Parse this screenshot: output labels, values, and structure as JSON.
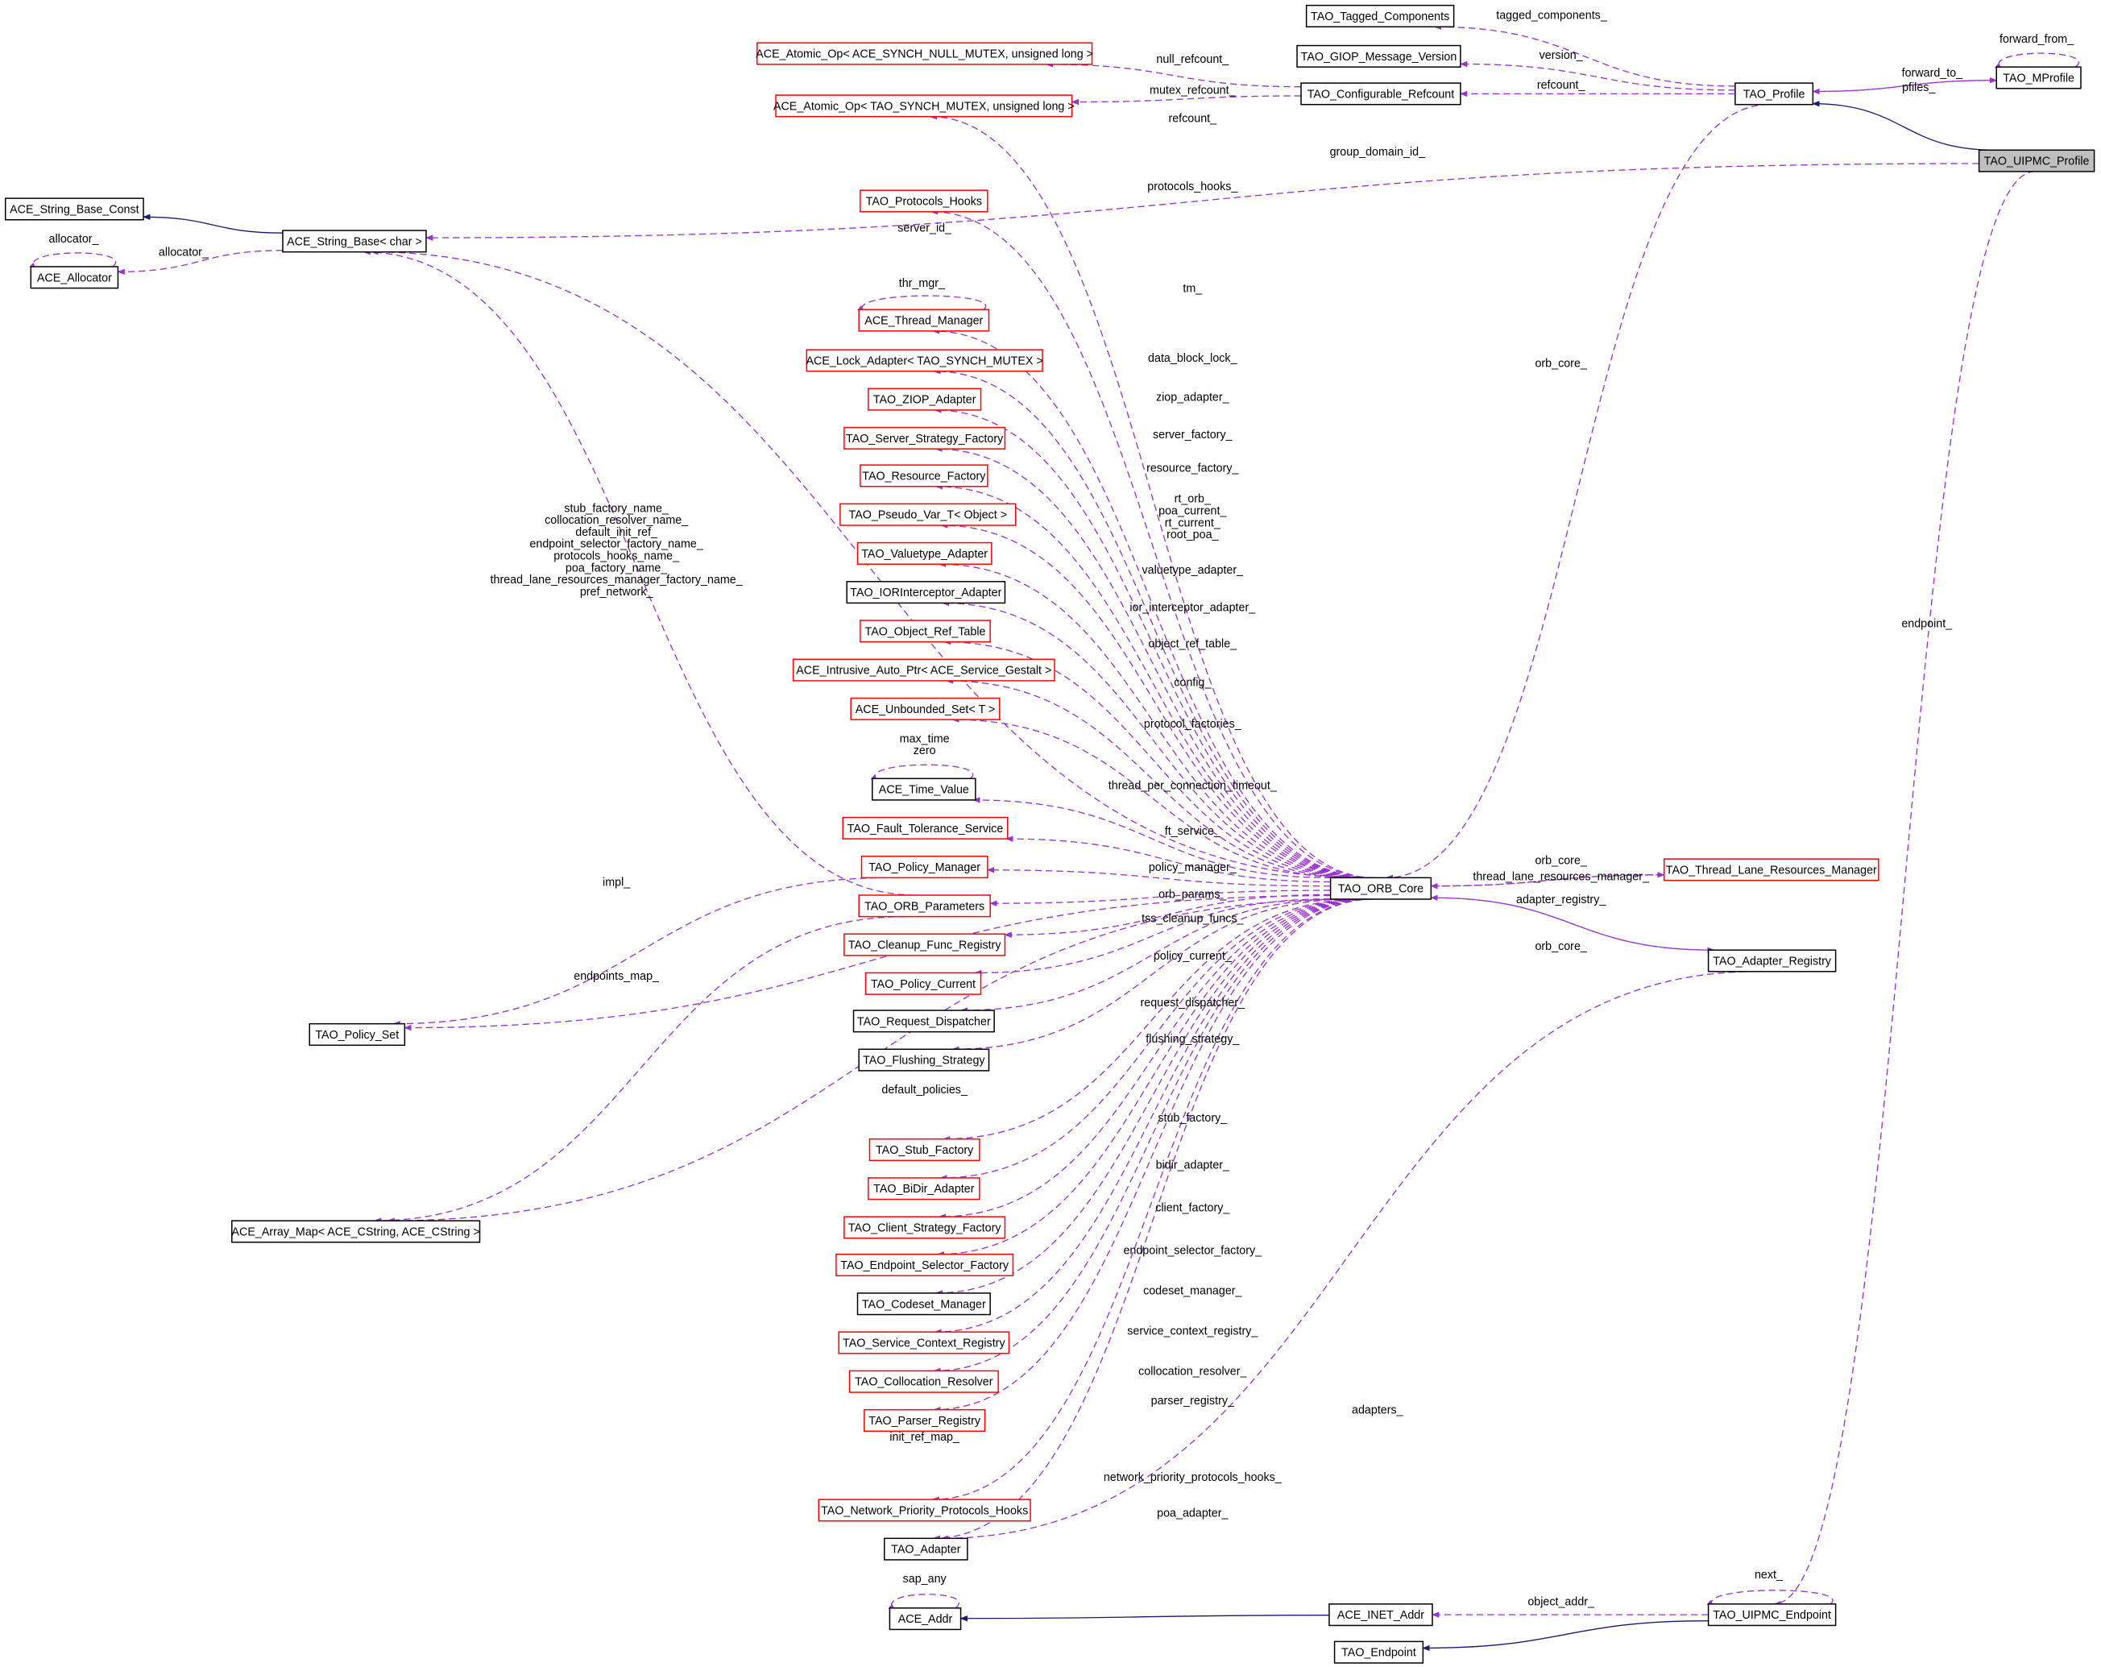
{
  "colors": {
    "reference_edge": "#9a32cd",
    "inheritance_edge": "#191970",
    "incomplete_node_border": "#ff0000",
    "node_border": "#000000",
    "focus_node_fill": "#bfbfbf"
  },
  "nodes": [
    {
      "id": "tagged",
      "label": "TAO_Tagged_Components",
      "style": "black"
    },
    {
      "id": "giop",
      "label": "TAO_GIOP_Message_Version",
      "style": "black"
    },
    {
      "id": "atomic_null",
      "label": "ACE_Atomic_Op< ACE_SYNCH_NULL_MUTEX, unsigned long >",
      "style": "red"
    },
    {
      "id": "atomic_tao",
      "label": "ACE_Atomic_Op< TAO_SYNCH_MUTEX, unsigned long >",
      "style": "red"
    },
    {
      "id": "refcount",
      "label": "TAO_Configurable_Refcount",
      "style": "black"
    },
    {
      "id": "profile",
      "label": "TAO_Profile",
      "style": "black"
    },
    {
      "id": "mprofile",
      "label": "TAO_MProfile",
      "style": "black"
    },
    {
      "id": "uipmc_profile",
      "label": "TAO_UIPMC_Profile",
      "style": "highlight"
    },
    {
      "id": "sbase_const",
      "label": "ACE_String_Base_Const",
      "style": "black"
    },
    {
      "id": "sbase",
      "label": "ACE_String_Base< char >",
      "style": "black"
    },
    {
      "id": "allocator",
      "label": "ACE_Allocator",
      "style": "black"
    },
    {
      "id": "proto_hooks",
      "label": "TAO_Protocols_Hooks",
      "style": "red"
    },
    {
      "id": "thread_mgr",
      "label": "ACE_Thread_Manager",
      "style": "red"
    },
    {
      "id": "lock_adapter",
      "label": "ACE_Lock_Adapter< TAO_SYNCH_MUTEX >",
      "style": "red"
    },
    {
      "id": "ziop",
      "label": "TAO_ZIOP_Adapter",
      "style": "red"
    },
    {
      "id": "server_sf",
      "label": "TAO_Server_Strategy_Factory",
      "style": "red"
    },
    {
      "id": "resource_f",
      "label": "TAO_Resource_Factory",
      "style": "red"
    },
    {
      "id": "pseudo_var",
      "label": "TAO_Pseudo_Var_T< Object >",
      "style": "red"
    },
    {
      "id": "valuetype",
      "label": "TAO_Valuetype_Adapter",
      "style": "red"
    },
    {
      "id": "ior_int",
      "label": "TAO_IORInterceptor_Adapter",
      "style": "black"
    },
    {
      "id": "obj_ref",
      "label": "TAO_Object_Ref_Table",
      "style": "red"
    },
    {
      "id": "intrusive",
      "label": "ACE_Intrusive_Auto_Ptr< ACE_Service_Gestalt >",
      "style": "red"
    },
    {
      "id": "unbounded",
      "label": "ACE_Unbounded_Set< T >",
      "style": "red"
    },
    {
      "id": "time_value",
      "label": "ACE_Time_Value",
      "style": "black"
    },
    {
      "id": "ft",
      "label": "TAO_Fault_Tolerance_Service",
      "style": "red"
    },
    {
      "id": "policy_mgr",
      "label": "TAO_Policy_Manager",
      "style": "red"
    },
    {
      "id": "orb_params",
      "label": "TAO_ORB_Parameters",
      "style": "red"
    },
    {
      "id": "cleanup",
      "label": "TAO_Cleanup_Func_Registry",
      "style": "red"
    },
    {
      "id": "policy_cur",
      "label": "TAO_Policy_Current",
      "style": "red"
    },
    {
      "id": "req_disp",
      "label": "TAO_Request_Dispatcher",
      "style": "black"
    },
    {
      "id": "flushing",
      "label": "TAO_Flushing_Strategy",
      "style": "black"
    },
    {
      "id": "stub_f",
      "label": "TAO_Stub_Factory",
      "style": "red"
    },
    {
      "id": "bidir",
      "label": "TAO_BiDir_Adapter",
      "style": "red"
    },
    {
      "id": "client_sf",
      "label": "TAO_Client_Strategy_Factory",
      "style": "red"
    },
    {
      "id": "endpoint_sel",
      "label": "TAO_Endpoint_Selector_Factory",
      "style": "red"
    },
    {
      "id": "codeset",
      "label": "TAO_Codeset_Manager",
      "style": "black"
    },
    {
      "id": "svc_ctx",
      "label": "TAO_Service_Context_Registry",
      "style": "red"
    },
    {
      "id": "colloc",
      "label": "TAO_Collocation_Resolver",
      "style": "red"
    },
    {
      "id": "parser",
      "label": "TAO_Parser_Registry",
      "style": "red"
    },
    {
      "id": "net_prio",
      "label": "TAO_Network_Priority_Protocols_Hooks",
      "style": "red"
    },
    {
      "id": "adapter",
      "label": "TAO_Adapter",
      "style": "black"
    },
    {
      "id": "ace_addr",
      "label": "ACE_Addr",
      "style": "black"
    },
    {
      "id": "inet_addr",
      "label": "ACE_INET_Addr",
      "style": "black"
    },
    {
      "id": "uipmc_ep",
      "label": "TAO_UIPMC_Endpoint",
      "style": "black"
    },
    {
      "id": "tao_ep",
      "label": "TAO_Endpoint",
      "style": "black"
    },
    {
      "id": "orb_core",
      "label": "TAO_ORB_Core",
      "style": "black"
    },
    {
      "id": "tlrm",
      "label": "TAO_Thread_Lane_Resources_Manager",
      "style": "red"
    },
    {
      "id": "adapter_reg",
      "label": "TAO_Adapter_Registry",
      "style": "black"
    },
    {
      "id": "policy_set",
      "label": "TAO_Policy_Set",
      "style": "black"
    },
    {
      "id": "array_map",
      "label": "ACE_Array_Map< ACE_CString, ACE_CString >",
      "style": "black"
    }
  ],
  "edges": [
    {
      "from": "profile",
      "to": "tagged",
      "label": "tagged_components_",
      "kind": "ref"
    },
    {
      "from": "profile",
      "to": "giop",
      "label": "version_",
      "kind": "ref"
    },
    {
      "from": "refcount",
      "to": "atomic_null",
      "label": "null_refcount_",
      "kind": "ref"
    },
    {
      "from": "refcount",
      "to": "atomic_tao",
      "label": "mutex_refcount_",
      "kind": "ref"
    },
    {
      "from": "profile",
      "to": "refcount",
      "label": "refcount_",
      "kind": "ref"
    },
    {
      "from": "profile",
      "to": "mprofile",
      "label": "forward_to_",
      "kind": "ref"
    },
    {
      "from": "mprofile",
      "to": "profile",
      "label": "pfiles_",
      "kind": "ref"
    },
    {
      "from": "mprofile",
      "to": "mprofile",
      "label": "forward_from_",
      "kind": "ref"
    },
    {
      "from": "uipmc_profile",
      "to": "profile",
      "label": "",
      "kind": "inherit"
    },
    {
      "from": "uipmc_profile",
      "to": "sbase",
      "label": "group_domain_id_",
      "kind": "ref"
    },
    {
      "from": "sbase",
      "to": "sbase_const",
      "label": "",
      "kind": "inherit"
    },
    {
      "from": "sbase",
      "to": "allocator",
      "label": "allocator_",
      "kind": "ref"
    },
    {
      "from": "allocator",
      "to": "allocator",
      "label": "allocator_",
      "kind": "ref"
    },
    {
      "from": "orb_core",
      "to": "atomic_tao",
      "label": "refcount_",
      "kind": "ref"
    },
    {
      "from": "orb_core",
      "to": "proto_hooks",
      "label": "protocols_hooks_",
      "kind": "ref"
    },
    {
      "from": "orb_core",
      "to": "sbase",
      "label": "server_id_",
      "kind": "ref"
    },
    {
      "from": "thread_mgr",
      "to": "thread_mgr",
      "label": "thr_mgr_",
      "kind": "ref"
    },
    {
      "from": "orb_core",
      "to": "thread_mgr",
      "label": "tm_",
      "kind": "ref"
    },
    {
      "from": "orb_core",
      "to": "lock_adapter",
      "label": "data_block_lock_",
      "kind": "ref"
    },
    {
      "from": "orb_core",
      "to": "ziop",
      "label": "ziop_adapter_",
      "kind": "ref"
    },
    {
      "from": "orb_core",
      "to": "server_sf",
      "label": "server_factory_",
      "kind": "ref"
    },
    {
      "from": "orb_core",
      "to": "resource_f",
      "label": "resource_factory_",
      "kind": "ref"
    },
    {
      "from": "orb_core",
      "to": "pseudo_var",
      "label": "rt_orb_\npoa_current_\nrt_current_\nroot_poa_",
      "kind": "ref"
    },
    {
      "from": "orb_core",
      "to": "valuetype",
      "label": "valuetype_adapter_",
      "kind": "ref"
    },
    {
      "from": "orb_core",
      "to": "ior_int",
      "label": "ior_interceptor_adapter_",
      "kind": "ref"
    },
    {
      "from": "orb_core",
      "to": "obj_ref",
      "label": "object_ref_table_",
      "kind": "ref"
    },
    {
      "from": "orb_core",
      "to": "intrusive",
      "label": "config_",
      "kind": "ref"
    },
    {
      "from": "orb_core",
      "to": "unbounded",
      "label": "protocol_factories_",
      "kind": "ref"
    },
    {
      "from": "time_value",
      "to": "time_value",
      "label": "max_time\nzero",
      "kind": "ref"
    },
    {
      "from": "orb_core",
      "to": "time_value",
      "label": "thread_per_connection_timeout_",
      "kind": "ref"
    },
    {
      "from": "orb_core",
      "to": "ft",
      "label": "ft_service_",
      "kind": "ref"
    },
    {
      "from": "orb_core",
      "to": "policy_mgr",
      "label": "policy_manager_",
      "kind": "ref"
    },
    {
      "from": "orb_core",
      "to": "orb_params",
      "label": "orb_params_",
      "kind": "ref"
    },
    {
      "from": "orb_core",
      "to": "cleanup",
      "label": "tss_cleanup_funcs_",
      "kind": "ref"
    },
    {
      "from": "orb_core",
      "to": "policy_cur",
      "label": "policy_current_",
      "kind": "ref"
    },
    {
      "from": "orb_core",
      "to": "req_disp",
      "label": "request_dispatcher_",
      "kind": "ref"
    },
    {
      "from": "orb_core",
      "to": "flushing",
      "label": "flushing_strategy_",
      "kind": "ref"
    },
    {
      "from": "orb_core",
      "to": "policy_set",
      "label": "default_policies_",
      "kind": "ref"
    },
    {
      "from": "orb_core",
      "to": "stub_f",
      "label": "stub_factory_",
      "kind": "ref"
    },
    {
      "from": "orb_core",
      "to": "bidir",
      "label": "bidir_adapter_",
      "kind": "ref"
    },
    {
      "from": "orb_core",
      "to": "client_sf",
      "label": "client_factory_",
      "kind": "ref"
    },
    {
      "from": "orb_core",
      "to": "endpoint_sel",
      "label": "endpoint_selector_factory_",
      "kind": "ref"
    },
    {
      "from": "orb_core",
      "to": "codeset",
      "label": "codeset_manager_",
      "kind": "ref"
    },
    {
      "from": "orb_core",
      "to": "svc_ctx",
      "label": "service_context_registry_",
      "kind": "ref"
    },
    {
      "from": "orb_core",
      "to": "colloc",
      "label": "collocation_resolver_",
      "kind": "ref"
    },
    {
      "from": "orb_core",
      "to": "parser",
      "label": "parser_registry_",
      "kind": "ref"
    },
    {
      "from": "orb_core",
      "to": "array_map",
      "label": "init_ref_map_",
      "kind": "ref"
    },
    {
      "from": "orb_core",
      "to": "net_prio",
      "label": "network_priority_protocols_hooks_",
      "kind": "ref"
    },
    {
      "from": "orb_core",
      "to": "adapter",
      "label": "poa_adapter_",
      "kind": "ref"
    },
    {
      "from": "adapter_reg",
      "to": "adapter",
      "label": "adapters_",
      "kind": "ref"
    },
    {
      "from": "policy_mgr",
      "to": "policy_set",
      "label": "impl_",
      "kind": "ref"
    },
    {
      "from": "orb_params",
      "to": "array_map",
      "label": "endpoints_map_",
      "kind": "ref"
    },
    {
      "from": "orb_params",
      "to": "sbase",
      "label": "stub_factory_name_\ncollocation_resolver_name_\ndefault_init_ref_\nendpoint_selector_factory_name_\nprotocols_hooks_name_\npoa_factory_name_\nthread_lane_resources_manager_factory_name_\npref_network_",
      "kind": "ref"
    },
    {
      "from": "profile",
      "to": "orb_core",
      "label": "orb_core_",
      "kind": "ref"
    },
    {
      "from": "tlrm",
      "to": "orb_core",
      "label": "orb_core_",
      "kind": "ref"
    },
    {
      "from": "orb_core",
      "to": "tlrm",
      "label": "thread_lane_resources_manager_",
      "kind": "ref"
    },
    {
      "from": "orb_core",
      "to": "adapter_reg",
      "label": "adapter_registry_",
      "kind": "ref"
    },
    {
      "from": "adapter_reg",
      "to": "orb_core",
      "label": "orb_core_",
      "kind": "ref"
    },
    {
      "from": "uipmc_profile",
      "to": "uipmc_ep",
      "label": "endpoint_",
      "kind": "ref"
    },
    {
      "from": "uipmc_ep",
      "to": "uipmc_ep",
      "label": "next_",
      "kind": "ref"
    },
    {
      "from": "uipmc_ep",
      "to": "inet_addr",
      "label": "object_addr_",
      "kind": "ref"
    },
    {
      "from": "inet_addr",
      "to": "ace_addr",
      "label": "",
      "kind": "inherit"
    },
    {
      "from": "ace_addr",
      "to": "ace_addr",
      "label": "sap_any",
      "kind": "ref"
    },
    {
      "from": "uipmc_ep",
      "to": "tao_ep",
      "label": "",
      "kind": "inherit"
    }
  ]
}
